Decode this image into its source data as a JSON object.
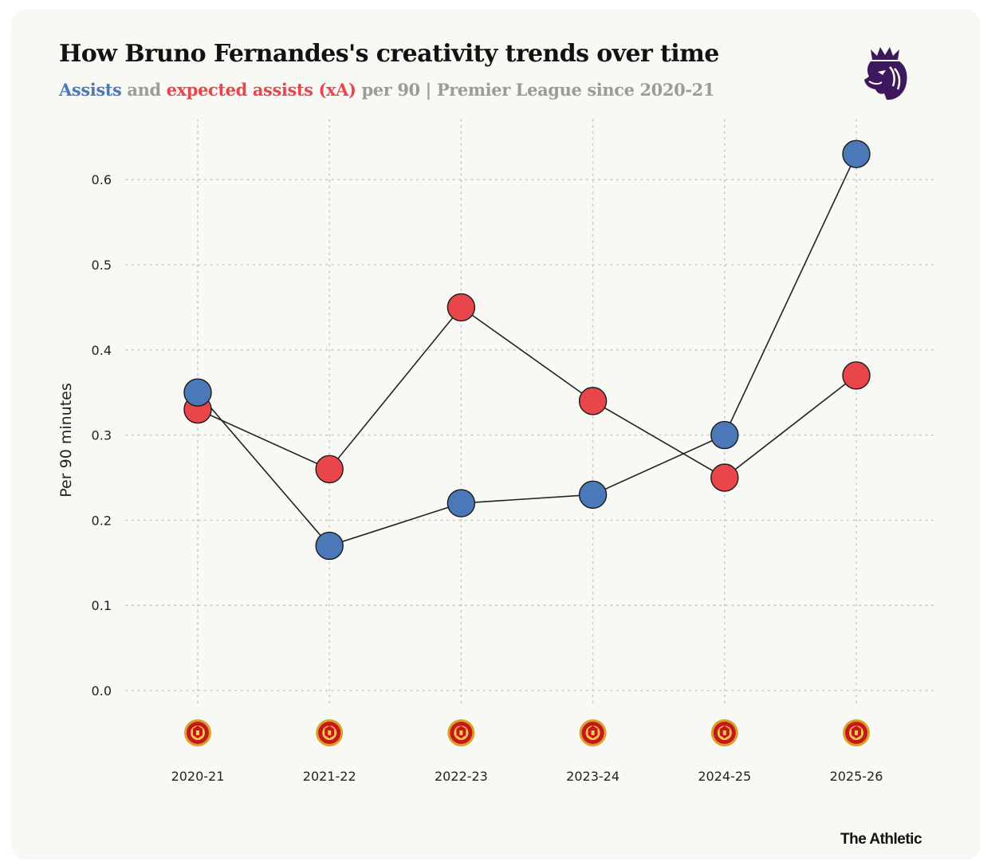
{
  "header": {
    "title": "How Bruno Fernandes's creativity trends over time",
    "subtitle_assists": "Assists",
    "subtitle_and": " and ",
    "subtitle_xa": "expected assists (xA)",
    "subtitle_rest": " per 90 | Premier League since 2020-21"
  },
  "logos": {
    "league": "premier-league-lion-icon",
    "club": "manchester-united-crest-icon"
  },
  "footer": {
    "credit": "The Athletic"
  },
  "colors": {
    "assists": "#4a78b8",
    "xa": "#e9464c",
    "line": "#222222",
    "grid": "#c9c9c9",
    "league_purple": "#3d185c"
  },
  "chart_data": {
    "type": "line",
    "categories": [
      "2020-21",
      "2021-22",
      "2022-23",
      "2023-24",
      "2024-25",
      "2025-26"
    ],
    "series": [
      {
        "name": "Assists",
        "values": [
          0.35,
          0.17,
          0.22,
          0.23,
          0.3,
          0.63
        ]
      },
      {
        "name": "expected assists (xA)",
        "values": [
          0.33,
          0.26,
          0.45,
          0.34,
          0.25,
          0.37
        ]
      }
    ],
    "ylabel": "Per 90 minutes",
    "yticks": [
      "0.0",
      "0.1",
      "0.2",
      "0.3",
      "0.4",
      "0.5",
      "0.6"
    ],
    "ylim": [
      0,
      0.6
    ],
    "grid": true,
    "grid_style": "dotted"
  }
}
